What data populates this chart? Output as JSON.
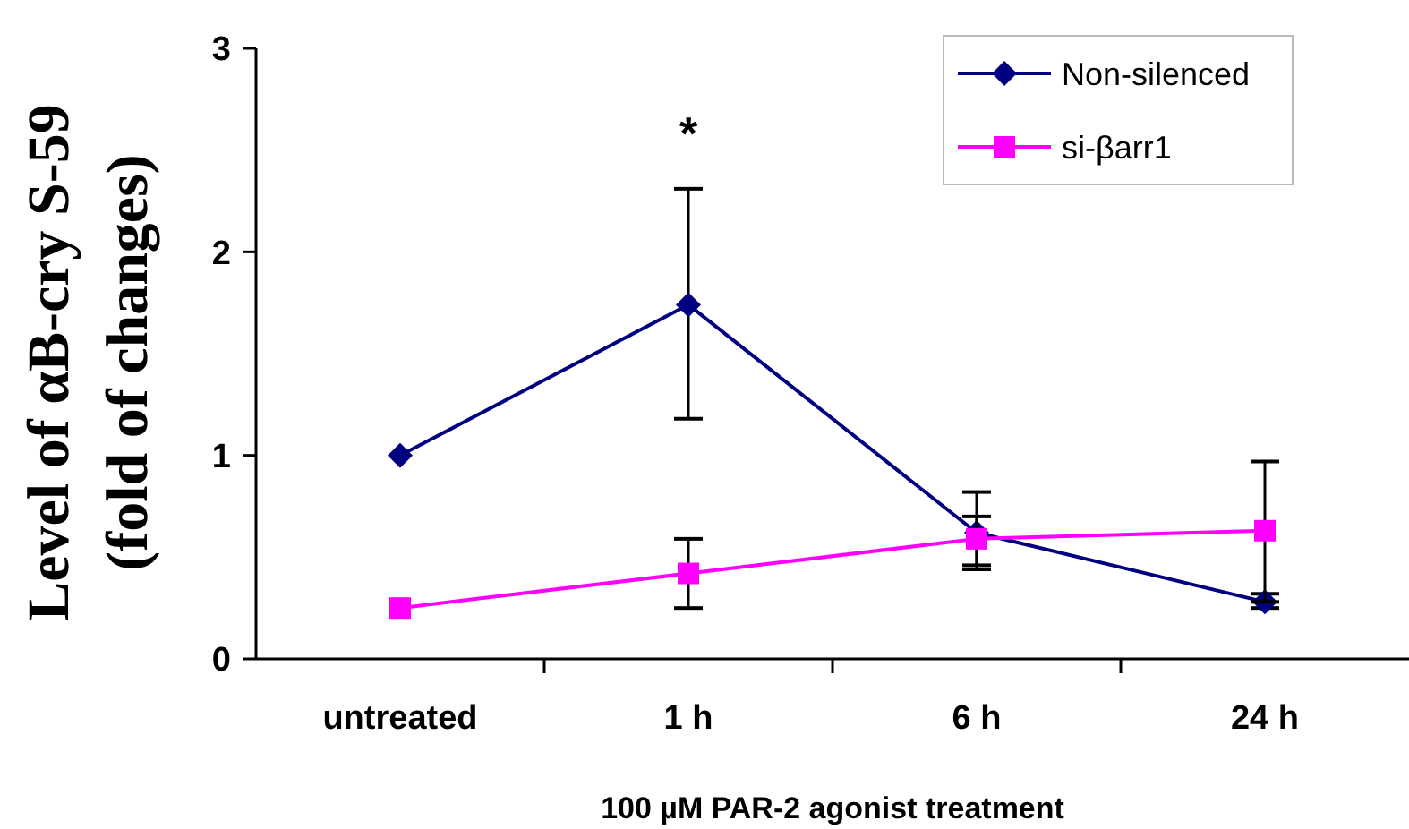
{
  "chart_data": {
    "type": "line",
    "xlabel": "100 µM PAR-2 agonist treatment",
    "ylabel": "Level of αB-cry S-59\n(fold of changes)",
    "categories": [
      "untreated",
      "1 h",
      "6 h",
      "24 h"
    ],
    "series": [
      {
        "name": "Non-silenced",
        "color": "#000080",
        "marker": "diamond",
        "values": [
          1.0,
          1.74,
          0.62,
          0.28
        ],
        "errors": [
          null,
          [
            1.18,
            2.31
          ],
          [
            0.44,
            0.7
          ],
          [
            0.25,
            0.32
          ]
        ]
      },
      {
        "name": "si-βarr1",
        "color": "#ff00ff",
        "marker": "square",
        "values": [
          0.25,
          0.42,
          0.59,
          0.63
        ],
        "errors": [
          null,
          [
            0.25,
            0.59
          ],
          [
            0.46,
            0.82
          ],
          [
            0.28,
            0.97
          ]
        ]
      }
    ],
    "ylim": [
      0,
      3
    ],
    "yticks": [
      0,
      1,
      2,
      3
    ],
    "grid": false,
    "legend": "top right",
    "annotations": [
      "*"
    ]
  }
}
